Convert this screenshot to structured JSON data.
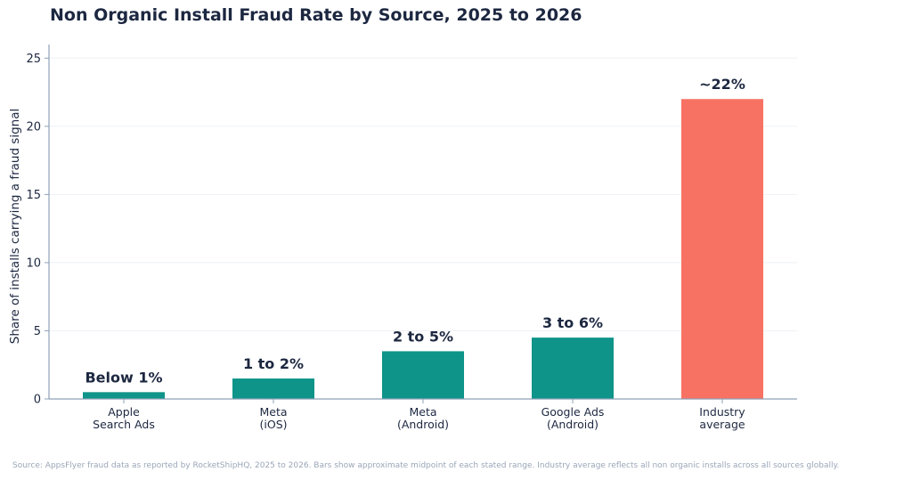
{
  "chart_data": {
    "type": "bar",
    "title": "Non Organic Install Fraud Rate by Source, 2025 to 2026",
    "ylabel": "Share of installs carrying a fraud signal",
    "xlabel": "",
    "ylim": [
      0,
      26
    ],
    "yticks": [
      0,
      5,
      10,
      15,
      20,
      25
    ],
    "grid": true,
    "categories": [
      [
        "Apple",
        "Search Ads"
      ],
      [
        "Meta",
        "(iOS)"
      ],
      [
        "Meta",
        "(Android)"
      ],
      [
        "Google Ads",
        "(Android)"
      ],
      [
        "Industry",
        "average"
      ]
    ],
    "values": [
      0.5,
      1.5,
      3.5,
      4.5,
      22
    ],
    "data_labels": [
      "Below 1%",
      "1 to 2%",
      "2 to 5%",
      "3 to 6%",
      "~22%"
    ],
    "bar_colors": [
      "#0e9488",
      "#0e9488",
      "#0e9488",
      "#0e9488",
      "#f77262"
    ]
  },
  "footer": {
    "source": "Source: AppsFlyer fraud data as reported by RocketShipHQ, 2025 to 2026. Bars show approximate midpoint of each stated range. Industry average reflects all non organic installs across all sources globally."
  },
  "colors": {
    "title": "#1c2740",
    "axis": "#8fa0b8",
    "grid": "#eef1f6",
    "text": "#1c2740",
    "note": "#9aa6b8"
  }
}
